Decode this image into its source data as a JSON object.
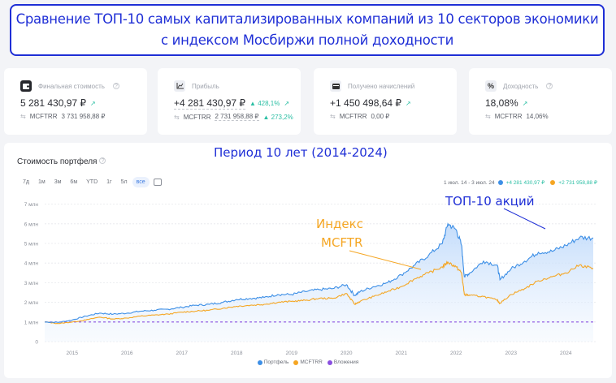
{
  "banner": {
    "line1": "Сравнение ТОП-10 самых капитализированных компаний из 10 секторов экономики",
    "line2": "с индексом Мосбиржи полной доходности"
  },
  "cards": [
    {
      "icon": "wallet-icon",
      "label": "Финальная стоимость",
      "help": "?",
      "value": "5 281 430,97 ₽",
      "change_pct": "",
      "trend": "↗",
      "benchmark": "MCFTRR",
      "benchmark_value": "3 731 958,88 ₽",
      "benchmark_pct": ""
    },
    {
      "icon": "chart-line-icon",
      "label": "Прибыль",
      "help": "",
      "value": "+4 281 430,97 ₽",
      "change_pct": "▲ 428,1%",
      "trend": "↗",
      "benchmark": "MCFTRR",
      "benchmark_value": "2 731 958,88 ₽",
      "benchmark_pct": "▲ 273,2%"
    },
    {
      "icon": "payments-icon",
      "label": "Получено начислений",
      "help": "",
      "value": "+1 450 498,64 ₽",
      "change_pct": "",
      "trend": "↗",
      "benchmark": "MCFTRR",
      "benchmark_value": "0,00 ₽",
      "benchmark_pct": ""
    },
    {
      "icon": "percent-icon",
      "label": "Доходность",
      "help": "?",
      "value": "18,08%",
      "change_pct": "",
      "trend": "↗",
      "benchmark": "MCFTRR",
      "benchmark_value": "14,06%",
      "benchmark_pct": ""
    }
  ],
  "chart_section": {
    "title": "Стоимость портфеля",
    "help": "?",
    "period_annotation": "Период 10 лет (2014-2024)",
    "ranges": [
      "7д",
      "1м",
      "3м",
      "6м",
      "YTD",
      "1г",
      "5л",
      "все"
    ],
    "active_range": "все",
    "summary_period": "1 июл. 14 - 3 июл. 24",
    "summary_portfolio": "+4 281 430,97 ₽",
    "summary_index": "+2 731 958,88 ₽",
    "annotation_top10": "ТОП-10 акций",
    "annotation_index_line1": "Индекс",
    "annotation_index_line2": "MCFTR",
    "legend": [
      "Портфель",
      "MCFTRR",
      "Вложения"
    ]
  },
  "colors": {
    "portfolio": "#3d8fe6",
    "index": "#f5a623",
    "investment": "#8a4fe0",
    "annotation_blue": "#1f2fd6",
    "annotation_orange": "#f5a623",
    "positive": "#2bbfa4"
  },
  "chart_data": {
    "type": "line",
    "title": "Стоимость портфеля",
    "xlabel": "",
    "ylabel": "",
    "x_tick_labels": [
      "2015",
      "2016",
      "2017",
      "2018",
      "2019",
      "2020",
      "2021",
      "2022",
      "2023",
      "2024"
    ],
    "y_tick_labels": [
      "0",
      "1 млн",
      "2 млн",
      "3 млн",
      "4 млн",
      "5 млн",
      "6 млн",
      "7 млн"
    ],
    "ylim": [
      0,
      7000000
    ],
    "grid": true,
    "legend_position": "bottom",
    "x": [
      2014.5,
      2014.75,
      2015.0,
      2015.25,
      2015.5,
      2015.75,
      2016.0,
      2016.25,
      2016.5,
      2016.75,
      2017.0,
      2017.25,
      2017.5,
      2017.75,
      2018.0,
      2018.25,
      2018.5,
      2018.75,
      2019.0,
      2019.25,
      2019.5,
      2019.75,
      2020.0,
      2020.15,
      2020.25,
      2020.5,
      2020.75,
      2021.0,
      2021.25,
      2021.5,
      2021.75,
      2021.85,
      2022.0,
      2022.1,
      2022.15,
      2022.25,
      2022.5,
      2022.75,
      2022.8,
      2023.0,
      2023.25,
      2023.5,
      2023.75,
      2024.0,
      2024.25,
      2024.5
    ],
    "series": [
      {
        "name": "Портфель",
        "values": [
          1.0,
          0.98,
          1.1,
          1.3,
          1.45,
          1.4,
          1.45,
          1.55,
          1.6,
          1.65,
          1.75,
          1.85,
          1.9,
          2.0,
          2.15,
          2.2,
          2.25,
          2.4,
          2.4,
          2.55,
          2.65,
          2.7,
          2.9,
          2.35,
          2.55,
          2.8,
          3.0,
          3.4,
          3.9,
          4.4,
          5.0,
          6.0,
          5.7,
          4.9,
          3.3,
          3.5,
          4.1,
          3.9,
          3.15,
          3.7,
          4.1,
          4.55,
          4.6,
          4.9,
          5.3,
          5.28
        ]
      },
      {
        "name": "MCFTRR",
        "values": [
          1.0,
          0.92,
          1.0,
          1.1,
          1.25,
          1.15,
          1.2,
          1.3,
          1.35,
          1.4,
          1.5,
          1.55,
          1.6,
          1.7,
          1.8,
          1.85,
          1.9,
          2.0,
          2.05,
          2.1,
          2.2,
          2.2,
          2.45,
          1.9,
          2.05,
          2.3,
          2.55,
          2.8,
          3.2,
          3.5,
          3.8,
          4.05,
          3.8,
          3.5,
          2.4,
          2.35,
          2.3,
          2.1,
          1.95,
          2.4,
          2.7,
          3.1,
          3.3,
          3.5,
          3.9,
          3.73
        ]
      },
      {
        "name": "Вложения",
        "values": [
          1.0,
          1.0,
          1.0,
          1.0,
          1.0,
          1.0,
          1.0,
          1.0,
          1.0,
          1.0,
          1.0,
          1.0,
          1.0,
          1.0,
          1.0,
          1.0,
          1.0,
          1.0,
          1.0,
          1.0,
          1.0,
          1.0,
          1.0,
          1.0,
          1.0,
          1.0,
          1.0,
          1.0,
          1.0,
          1.0,
          1.0,
          1.0,
          1.0,
          1.0,
          1.0,
          1.0,
          1.0,
          1.0,
          1.0,
          1.0,
          1.0,
          1.0,
          1.0,
          1.0,
          1.0,
          1.0
        ]
      }
    ],
    "values_unit": "млн ₽"
  }
}
